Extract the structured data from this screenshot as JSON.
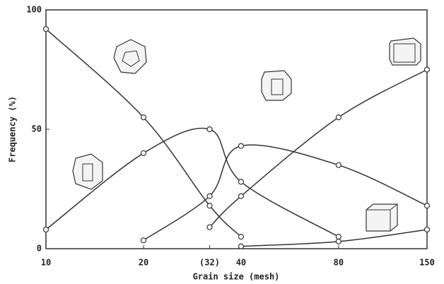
{
  "chart_data": {
    "type": "line",
    "x_label": "Grain size (mesh)",
    "y_label": "Frequency (%)",
    "x": [
      10,
      20,
      32,
      40,
      80,
      150
    ],
    "xscale": "log",
    "xlim": [
      10,
      150
    ],
    "xticks": [
      10,
      20,
      {
        "value": 32,
        "label": "(32)"
      },
      40,
      80,
      150
    ],
    "ylim": [
      0,
      100
    ],
    "yticks": [
      0,
      50,
      100
    ],
    "color": "#333333",
    "series": [
      {
        "values": [
          92,
          55,
          18,
          5,
          null,
          null
        ]
      },
      {
        "values": [
          8,
          40,
          50,
          28,
          5,
          null
        ]
      },
      {
        "values": [
          null,
          3.5,
          22,
          43,
          35,
          18
        ]
      },
      {
        "values": [
          null,
          null,
          9,
          22,
          55,
          75
        ]
      },
      {
        "values": [
          null,
          null,
          null,
          1,
          3,
          8
        ]
      }
    ]
  }
}
